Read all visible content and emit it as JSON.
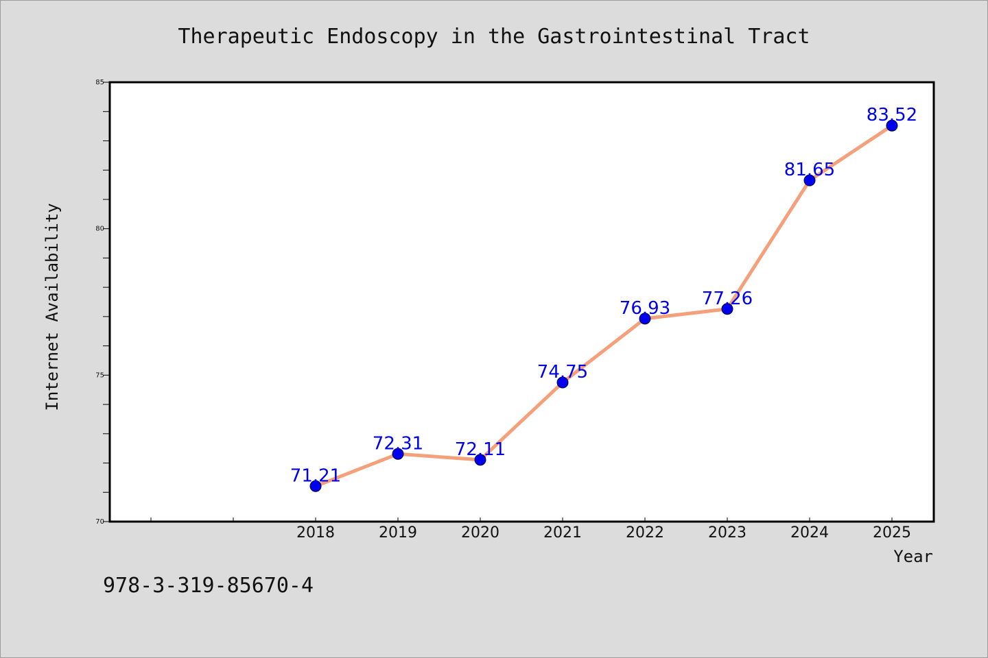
{
  "colors": {
    "background": "#dcdcdc",
    "plot_background": "#ffffff",
    "line": "#f4a07a",
    "marker": "#0000ee",
    "data_label": "#0000ee"
  },
  "footer": {
    "isbn": "978-3-319-85670-4"
  },
  "chart_data": {
    "type": "line",
    "title": "Therapeutic Endoscopy in the Gastrointestinal Tract",
    "xlabel": "Year",
    "ylabel": "Internet Availability",
    "categories": [
      "2018",
      "2019",
      "2020",
      "2021",
      "2022",
      "2023",
      "2024",
      "2025"
    ],
    "values": [
      71.21,
      72.31,
      72.11,
      74.75,
      76.93,
      77.26,
      81.65,
      83.52
    ],
    "data_labels": [
      "71.21",
      "72.31",
      "72.11",
      "74.75",
      "76.93",
      "77.26",
      "81.65",
      "83.52"
    ],
    "ylim": [
      70,
      85
    ],
    "yticks": [
      "70",
      "75",
      "80",
      "85"
    ],
    "grid": false,
    "legend": "none"
  }
}
